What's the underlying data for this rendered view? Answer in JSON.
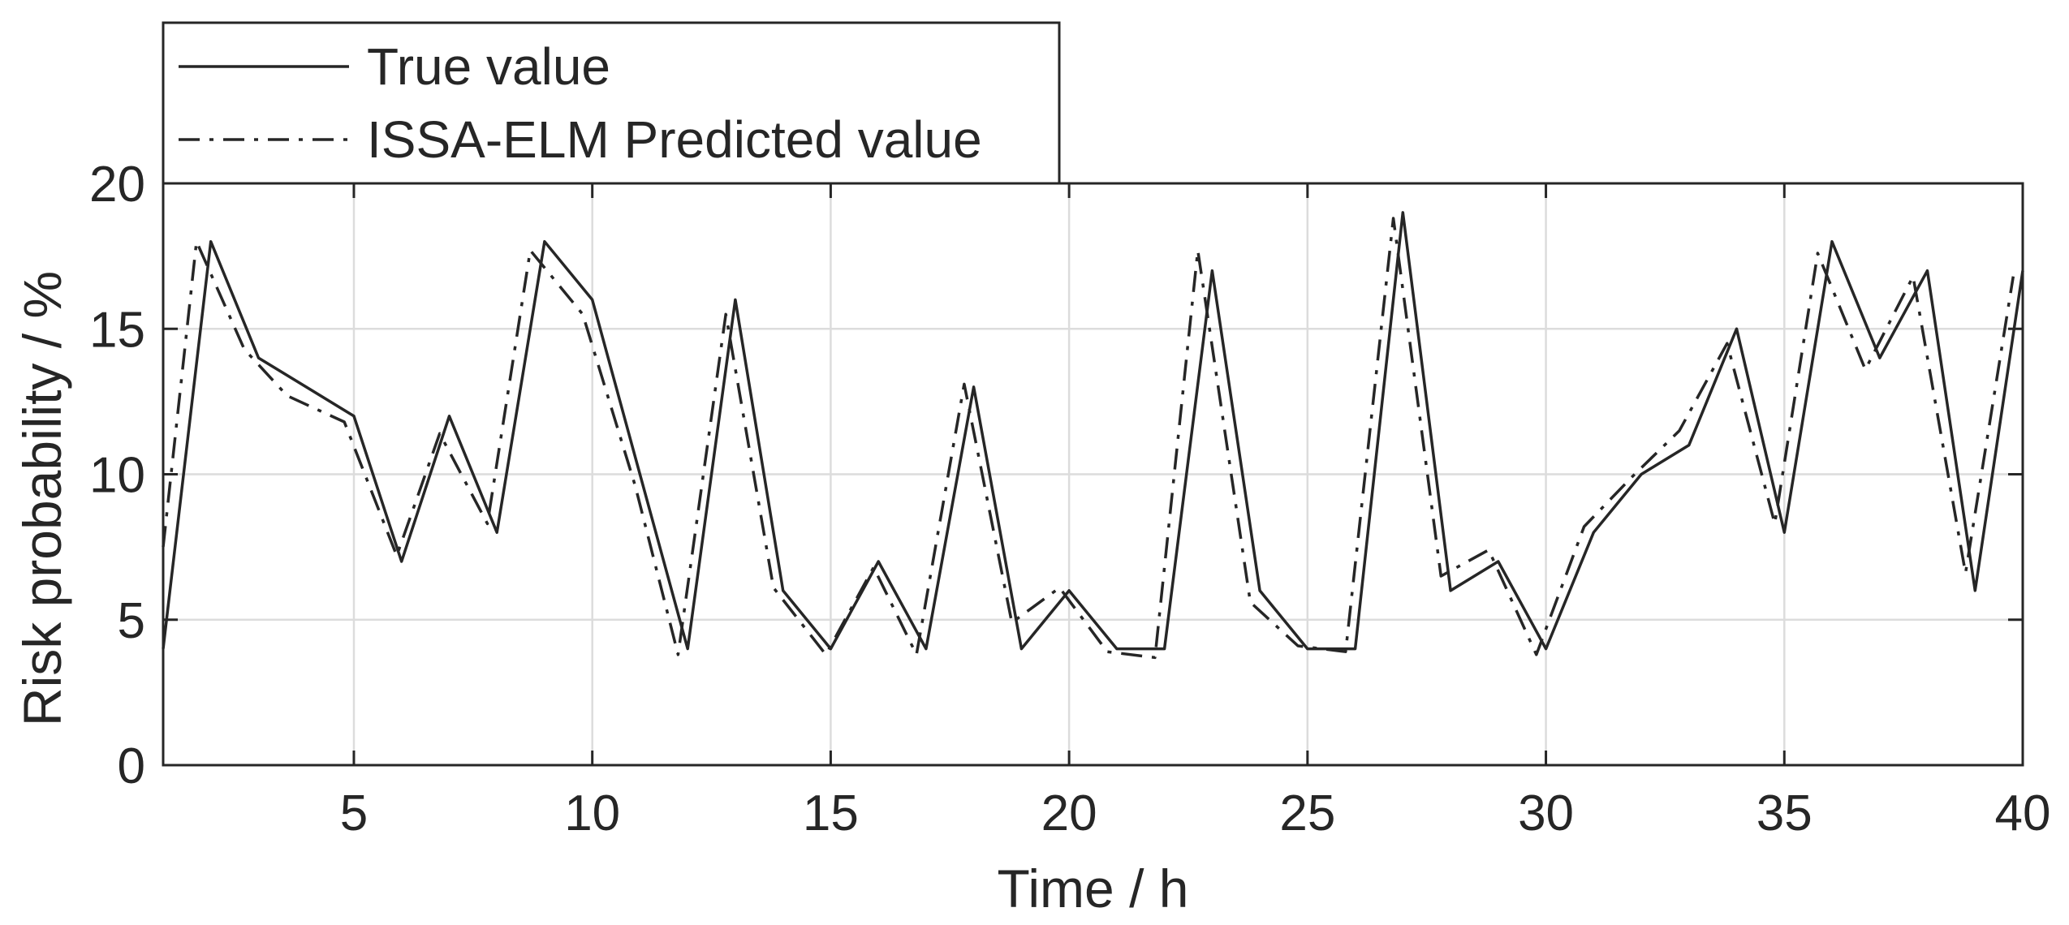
{
  "chart_data": {
    "type": "line",
    "title": "",
    "xlabel": "Time / h",
    "ylabel": "Risk probability / %",
    "xlim": [
      1,
      40
    ],
    "ylim": [
      0,
      20
    ],
    "x_ticks": [
      5,
      10,
      15,
      20,
      25,
      30,
      35,
      40
    ],
    "y_ticks": [
      0,
      5,
      10,
      15,
      20
    ],
    "x_tick_labels": [
      "5",
      "10",
      "15",
      "20",
      "25",
      "30",
      "35",
      "40"
    ],
    "y_tick_labels": [
      "0",
      "5",
      "10",
      "15",
      "20"
    ],
    "grid": true,
    "legend_position": "top-left, above plot",
    "series": [
      {
        "name": "True value",
        "style": "solid",
        "color": "#262626",
        "x": [
          1,
          2,
          3,
          4,
          5,
          6,
          7,
          8,
          9,
          10,
          11,
          12,
          13,
          14,
          15,
          16,
          17,
          18,
          19,
          20,
          21,
          22,
          23,
          24,
          25,
          26,
          27,
          28,
          29,
          30,
          31,
          32,
          33,
          34,
          35,
          36,
          37,
          38,
          39,
          40
        ],
        "values": [
          4,
          18,
          14,
          13,
          12,
          7,
          12,
          8,
          18,
          16,
          10,
          4,
          16,
          6,
          4,
          7,
          4,
          13,
          4,
          6,
          4,
          4,
          17,
          6,
          4,
          4,
          19,
          6,
          7,
          4,
          8,
          10,
          11,
          15,
          8,
          18,
          14,
          17,
          6,
          17
        ]
      },
      {
        "name": "ISSA-ELM Predicted value",
        "style": "dashdot",
        "color": "#262626",
        "x": [
          1,
          1.7,
          2.7,
          3.6,
          4.8,
          5.9,
          6.8,
          7.8,
          8.7,
          9.8,
          10.9,
          11.8,
          12.8,
          13.8,
          14.9,
          15.9,
          16.8,
          17.8,
          18.8,
          19.8,
          20.8,
          21.8,
          22.7,
          23.8,
          24.8,
          25.8,
          26.8,
          27.8,
          28.8,
          29.8,
          30.8,
          31.8,
          32.8,
          33.8,
          34.8,
          35.7,
          36.7,
          37.7,
          38.8,
          39.8
        ],
        "values": [
          7.5,
          18,
          14.3,
          12.7,
          11.8,
          7.2,
          11.4,
          8.3,
          17.7,
          15.5,
          9.6,
          3.8,
          15.5,
          6.1,
          3.8,
          6.8,
          3.8,
          13.1,
          4.9,
          6.1,
          3.9,
          3.7,
          17.7,
          5.6,
          4.1,
          3.9,
          18.8,
          6.5,
          7.4,
          3.8,
          8.2,
          9.9,
          11.5,
          14.5,
          8.3,
          17.6,
          13.6,
          16.8,
          6.6,
          16.8
        ]
      }
    ]
  }
}
